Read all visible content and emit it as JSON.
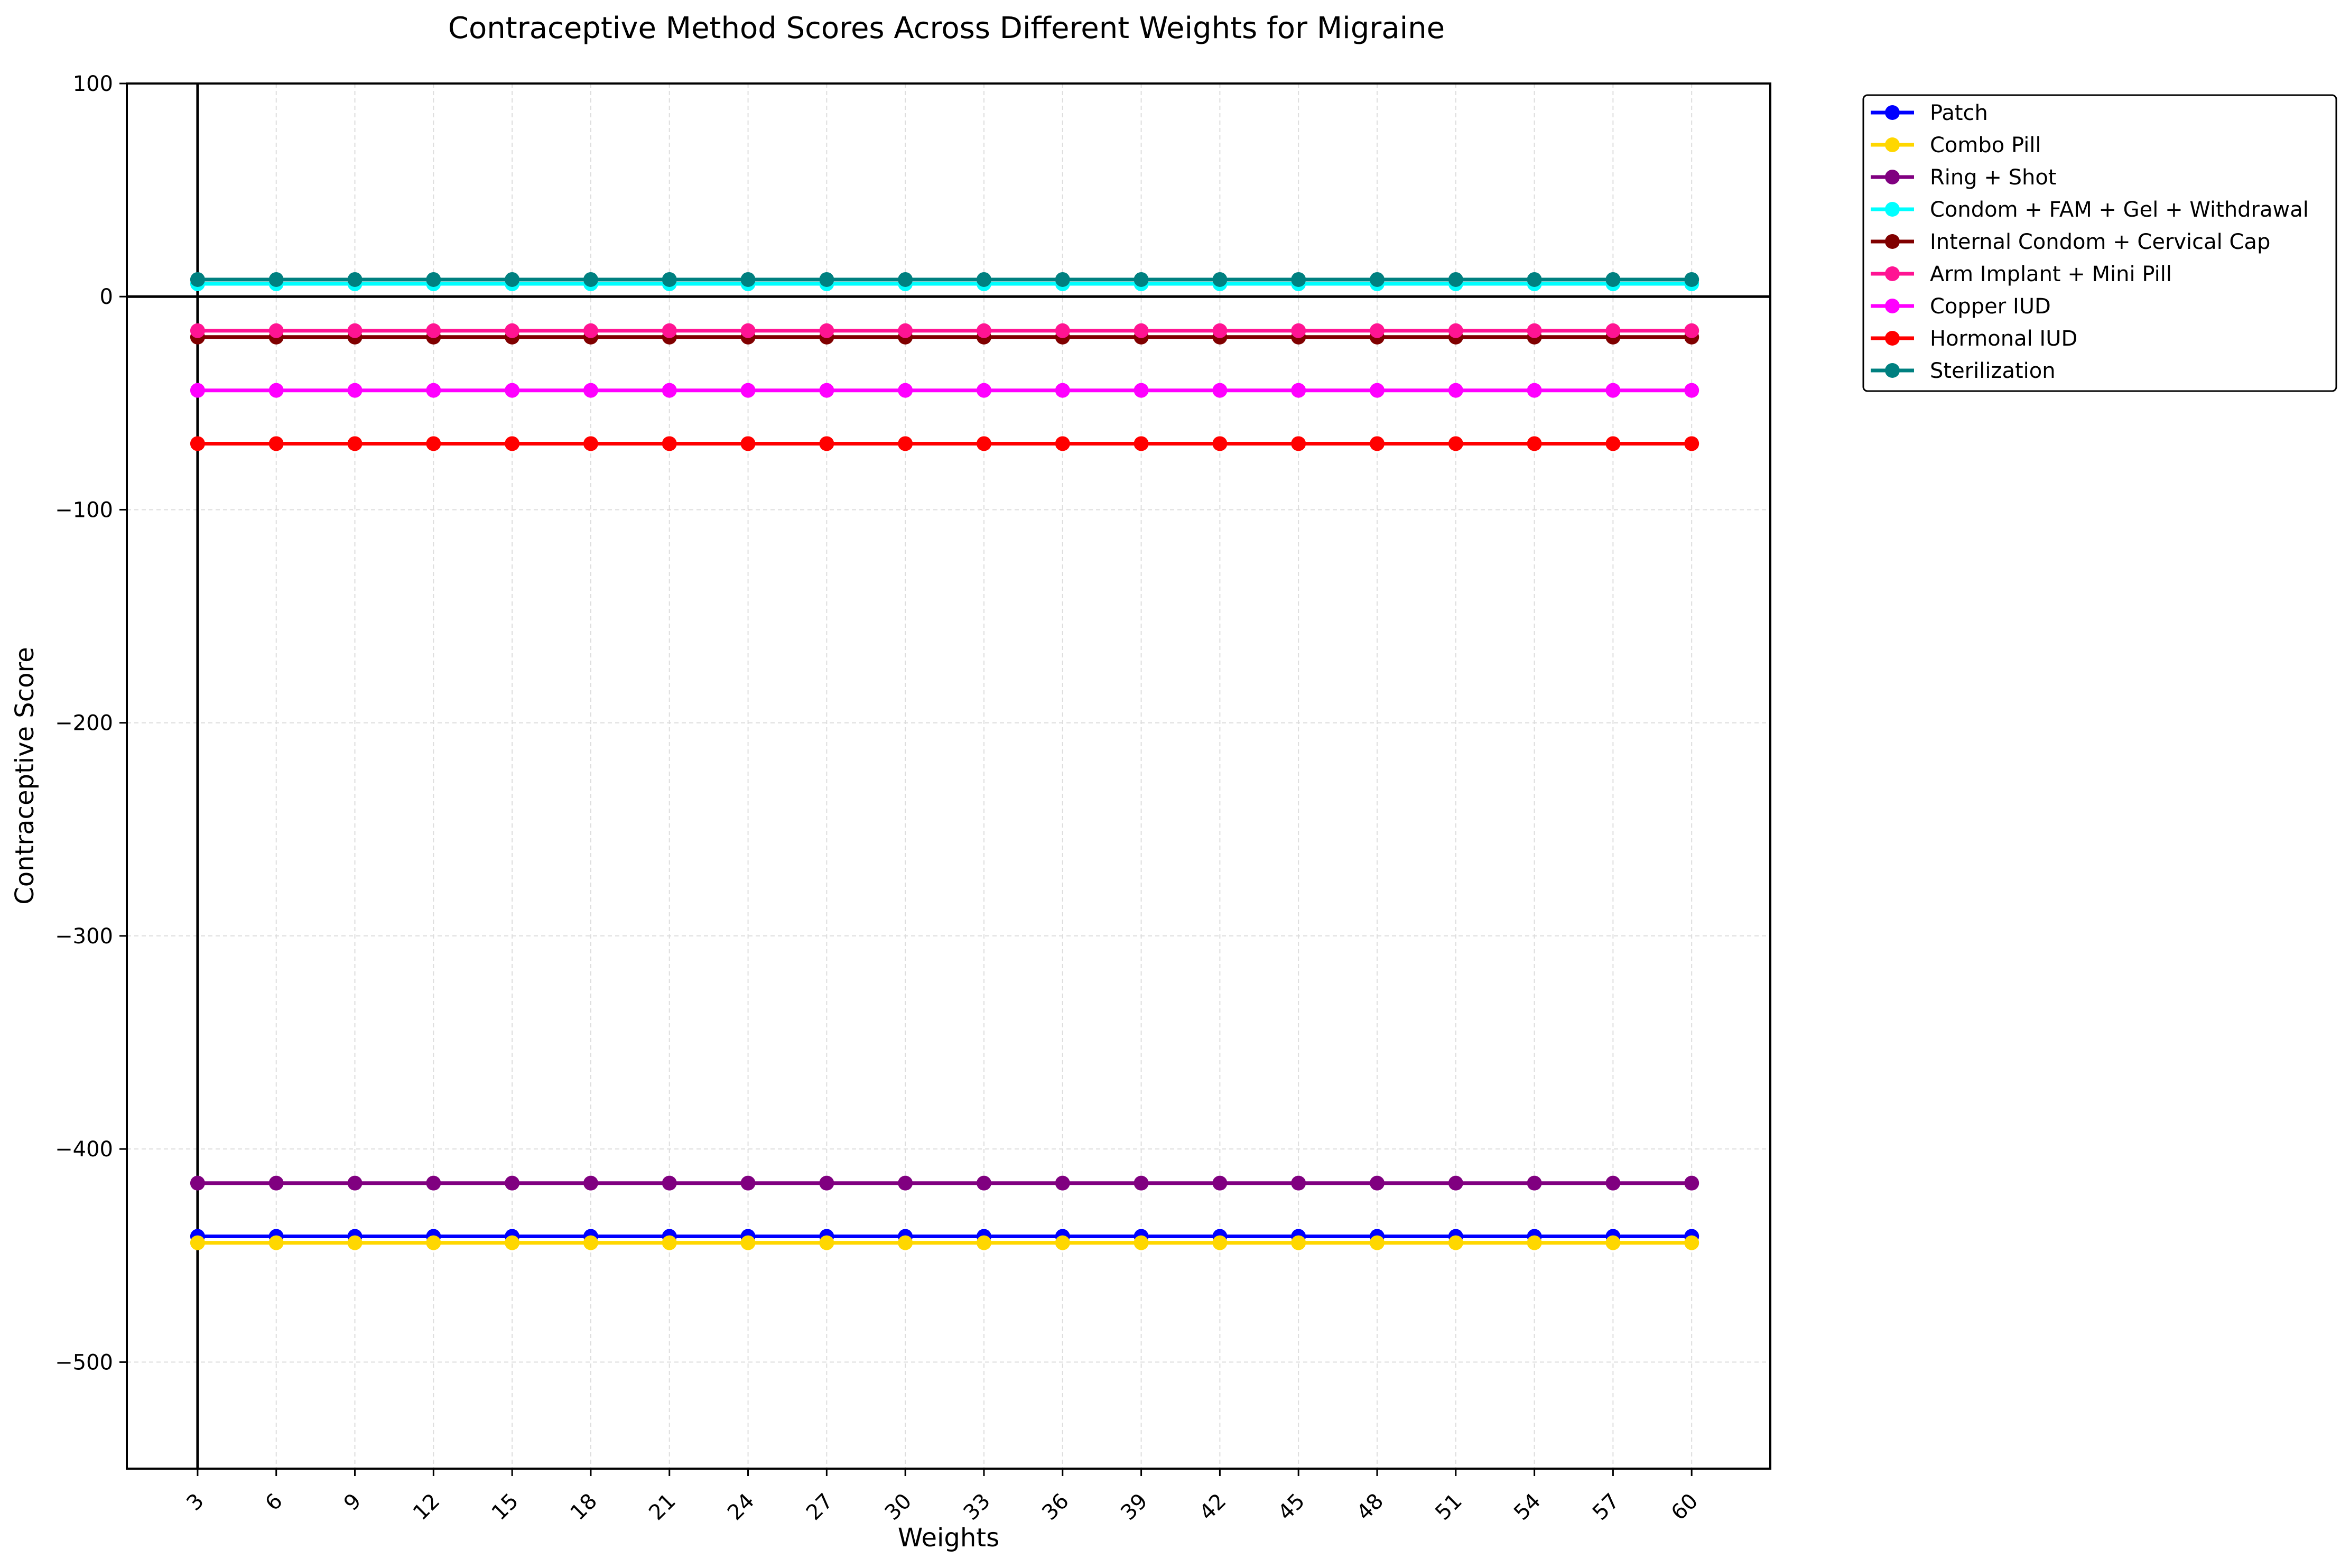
{
  "chart_data": {
    "type": "line",
    "title": "Contraceptive Method Scores Across Different Weights for Migraine",
    "xlabel": "Weights",
    "ylabel": "Contraceptive Score",
    "x": [
      3,
      6,
      9,
      12,
      15,
      18,
      21,
      24,
      27,
      30,
      33,
      36,
      39,
      42,
      45,
      48,
      51,
      54,
      57,
      60
    ],
    "xlim": [
      0.3,
      63
    ],
    "ylim": [
      -550,
      100
    ],
    "yticks": [
      100,
      0,
      -100,
      -200,
      -300,
      -400,
      -500
    ],
    "ytick_labels": [
      "100",
      "0",
      "−100",
      "−200",
      "−300",
      "−400",
      "−500"
    ],
    "grid": true,
    "reference_lines": {
      "horizontal_at_y": 0,
      "vertical_at_x": 3
    },
    "legend_position": "outside-upper-right",
    "series": [
      {
        "name": "Patch",
        "color": "#0000ff",
        "values": [
          -441,
          -441,
          -441,
          -441,
          -441,
          -441,
          -441,
          -441,
          -441,
          -441,
          -441,
          -441,
          -441,
          -441,
          -441,
          -441,
          -441,
          -441,
          -441,
          -441
        ]
      },
      {
        "name": "Combo Pill",
        "color": "#ffd700",
        "values": [
          -444,
          -444,
          -444,
          -444,
          -444,
          -444,
          -444,
          -444,
          -444,
          -444,
          -444,
          -444,
          -444,
          -444,
          -444,
          -444,
          -444,
          -444,
          -444,
          -444
        ]
      },
      {
        "name": "Ring + Shot",
        "color": "#800080",
        "values": [
          -416,
          -416,
          -416,
          -416,
          -416,
          -416,
          -416,
          -416,
          -416,
          -416,
          -416,
          -416,
          -416,
          -416,
          -416,
          -416,
          -416,
          -416,
          -416,
          -416
        ]
      },
      {
        "name": "Condom + FAM + Gel + Withdrawal",
        "color": "#00ffff",
        "values": [
          6,
          6,
          6,
          6,
          6,
          6,
          6,
          6,
          6,
          6,
          6,
          6,
          6,
          6,
          6,
          6,
          6,
          6,
          6,
          6
        ]
      },
      {
        "name": "Internal Condom + Cervical Cap",
        "color": "#800000",
        "values": [
          -19,
          -19,
          -19,
          -19,
          -19,
          -19,
          -19,
          -19,
          -19,
          -19,
          -19,
          -19,
          -19,
          -19,
          -19,
          -19,
          -19,
          -19,
          -19,
          -19
        ]
      },
      {
        "name": "Arm Implant + Mini Pill",
        "color": "#ff1493",
        "values": [
          -16,
          -16,
          -16,
          -16,
          -16,
          -16,
          -16,
          -16,
          -16,
          -16,
          -16,
          -16,
          -16,
          -16,
          -16,
          -16,
          -16,
          -16,
          -16,
          -16
        ]
      },
      {
        "name": "Copper IUD",
        "color": "#ff00ff",
        "values": [
          -44,
          -44,
          -44,
          -44,
          -44,
          -44,
          -44,
          -44,
          -44,
          -44,
          -44,
          -44,
          -44,
          -44,
          -44,
          -44,
          -44,
          -44,
          -44,
          -44
        ]
      },
      {
        "name": "Hormonal IUD",
        "color": "#ff0000",
        "values": [
          -69,
          -69,
          -69,
          -69,
          -69,
          -69,
          -69,
          -69,
          -69,
          -69,
          -69,
          -69,
          -69,
          -69,
          -69,
          -69,
          -69,
          -69,
          -69,
          -69
        ]
      },
      {
        "name": "Sterilization",
        "color": "#008080",
        "values": [
          8,
          8,
          8,
          8,
          8,
          8,
          8,
          8,
          8,
          8,
          8,
          8,
          8,
          8,
          8,
          8,
          8,
          8,
          8,
          8
        ]
      }
    ]
  }
}
